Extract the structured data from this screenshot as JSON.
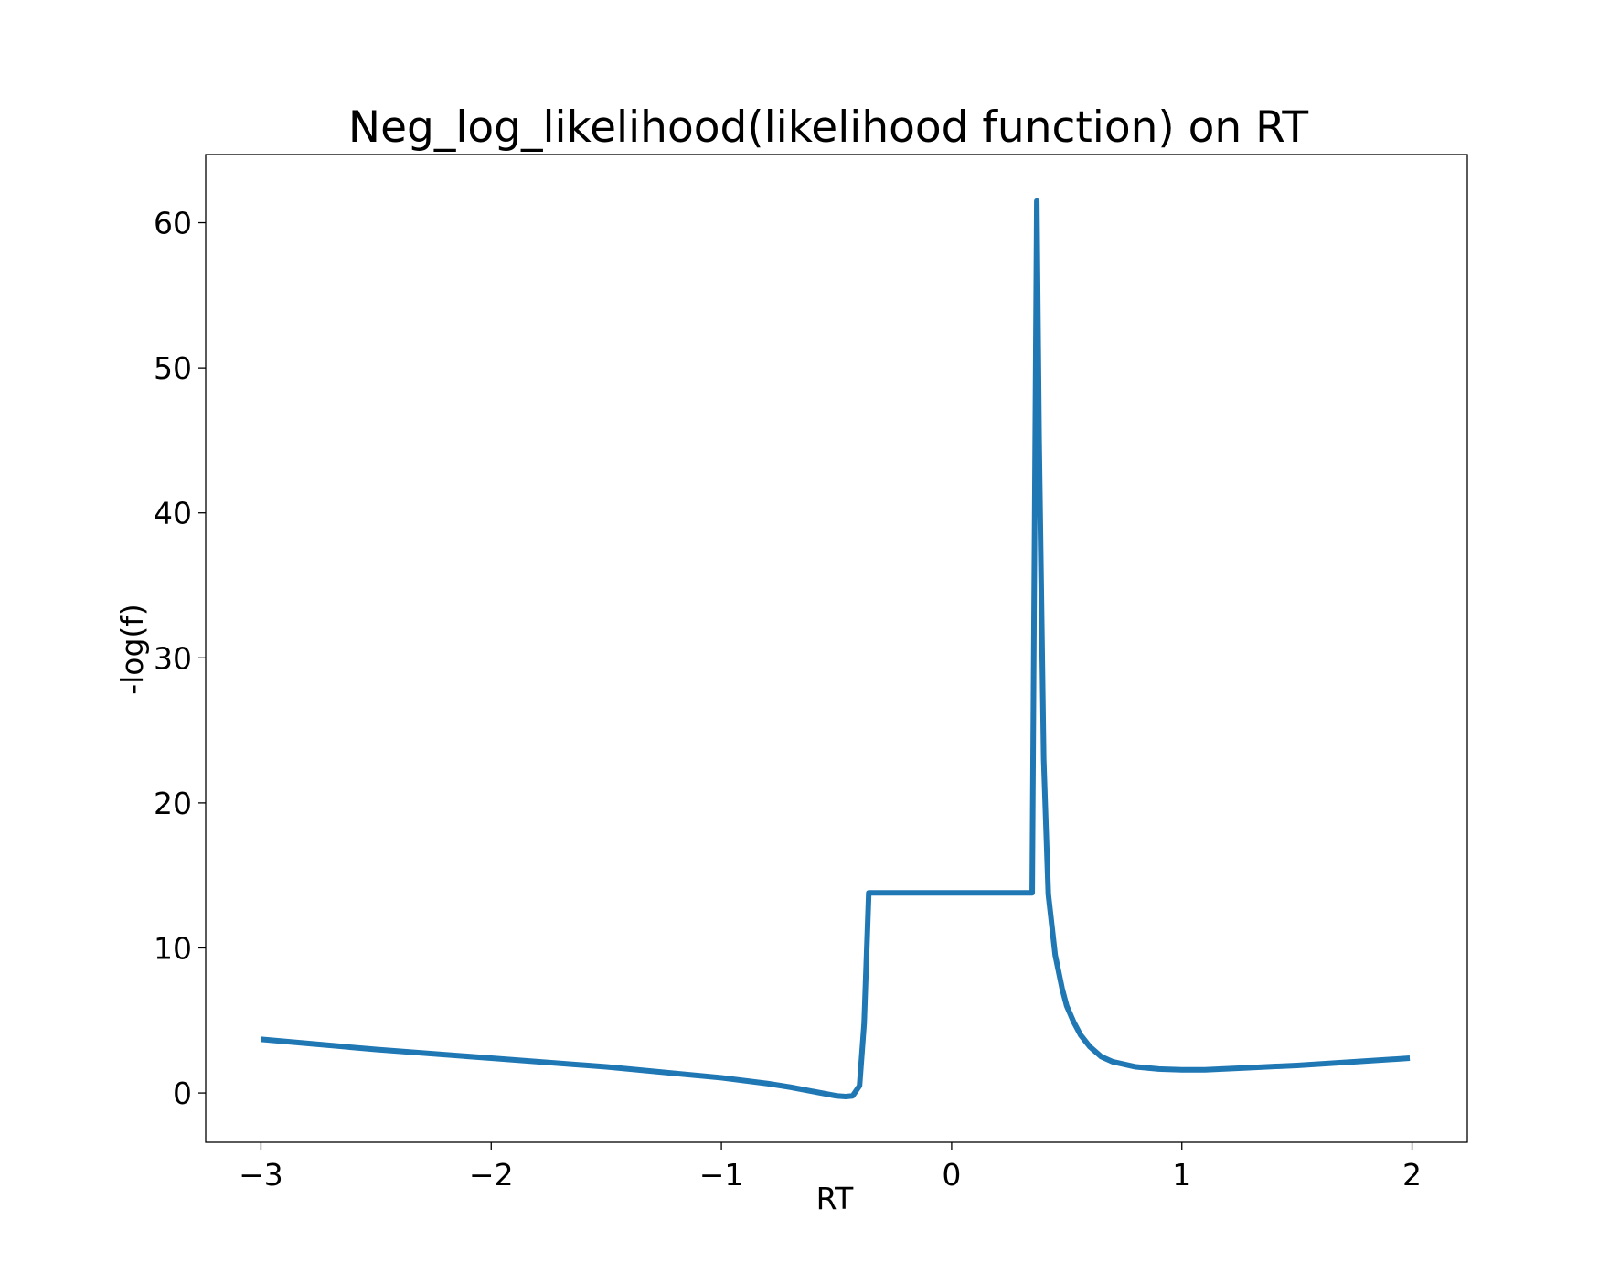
{
  "chart_data": {
    "type": "line",
    "title": "Neg_log_likelihood(likelihood function) on RT",
    "xlabel": "RT",
    "ylabel": "-log(f)",
    "xlim": [
      -3.24,
      2.24
    ],
    "ylim": [
      -3.4,
      64.7
    ],
    "xticks": [
      -3,
      -2,
      -1,
      0,
      1,
      2
    ],
    "xtick_labels": [
      "−3",
      "−2",
      "−1",
      "0",
      "1",
      "2"
    ],
    "yticks": [
      0,
      10,
      20,
      30,
      40,
      50,
      60
    ],
    "ytick_labels": [
      "0",
      "10",
      "20",
      "30",
      "40",
      "50",
      "60"
    ],
    "grid": false,
    "line_color": "#1f77b4",
    "series": [
      {
        "x": [
          -3.0,
          -2.5,
          -2.0,
          -1.5,
          -1.0,
          -0.8,
          -0.7,
          -0.6,
          -0.5,
          -0.46,
          -0.43,
          -0.4,
          -0.38,
          -0.36,
          -0.35,
          0.35,
          0.37,
          0.38,
          0.4,
          0.42,
          0.45,
          0.48,
          0.5,
          0.53,
          0.56,
          0.6,
          0.65,
          0.7,
          0.8,
          0.9,
          1.0,
          1.1,
          1.3,
          1.5,
          1.7,
          1.99
        ],
        "y": [
          3.7,
          3.0,
          2.4,
          1.8,
          1.05,
          0.65,
          0.4,
          0.1,
          -0.2,
          -0.25,
          -0.2,
          0.5,
          4.8,
          13.8,
          13.8,
          13.8,
          61.5,
          45.0,
          23.0,
          13.7,
          9.5,
          7.2,
          6.0,
          4.9,
          4.0,
          3.2,
          2.5,
          2.15,
          1.8,
          1.65,
          1.6,
          1.6,
          1.75,
          1.9,
          2.1,
          2.4
        ]
      }
    ]
  }
}
